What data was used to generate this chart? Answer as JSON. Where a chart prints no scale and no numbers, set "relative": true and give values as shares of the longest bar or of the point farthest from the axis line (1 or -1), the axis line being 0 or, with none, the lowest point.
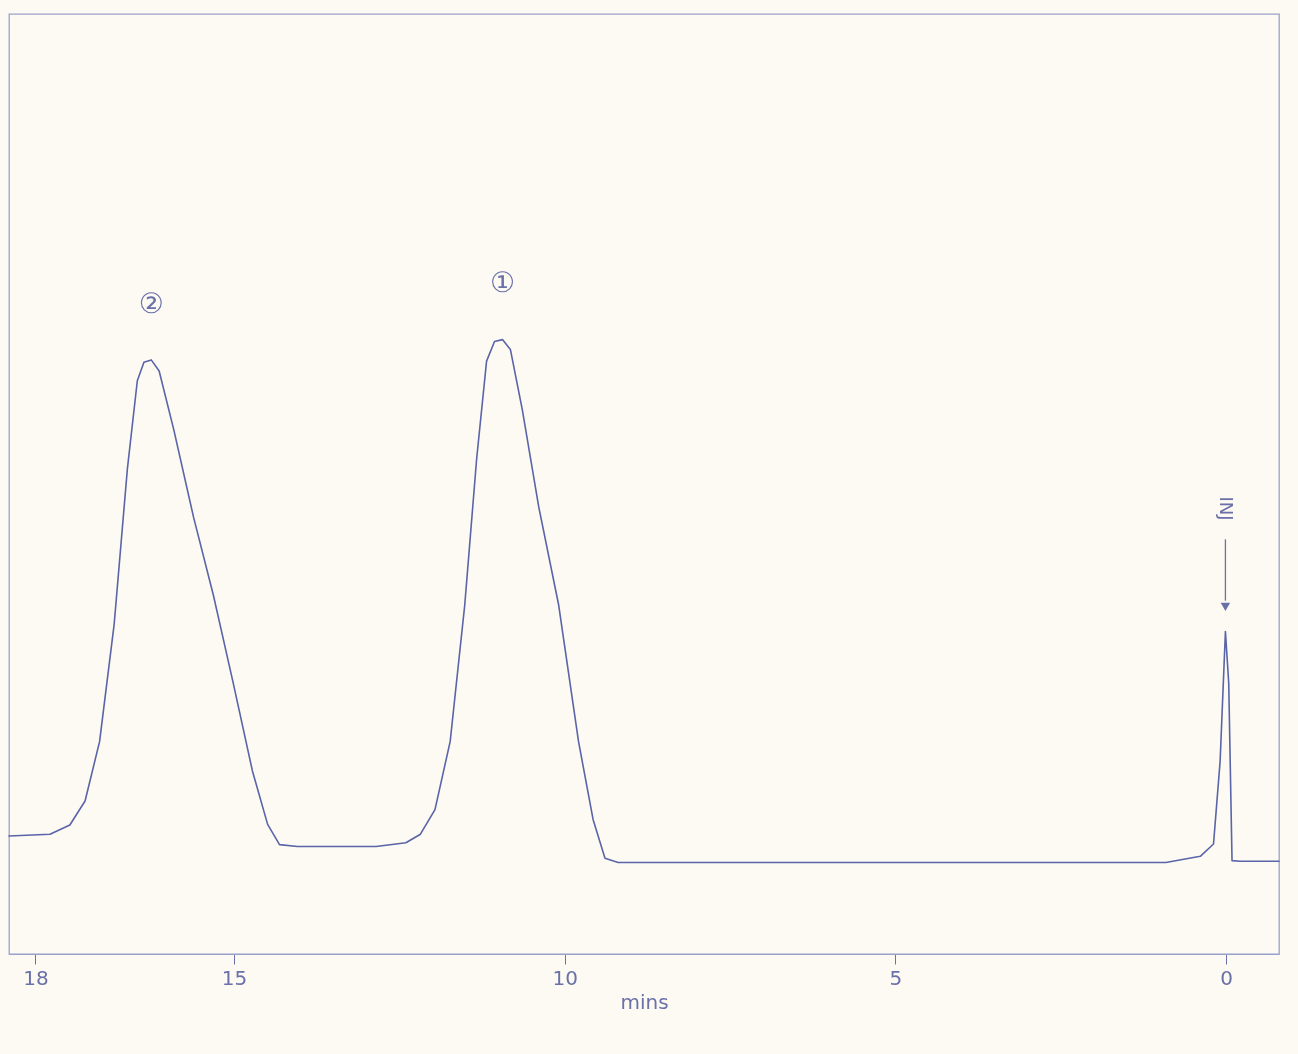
{
  "chart_data": {
    "type": "line",
    "relative": true,
    "xlabel": "mins",
    "xlim": [
      18.4,
      -0.8
    ],
    "xticks": [
      18,
      15,
      10,
      5,
      0
    ],
    "grid": false,
    "marker": "none",
    "line_style": "solid",
    "x": [
      18.4,
      17.78,
      17.48,
      17.25,
      17.03,
      16.81,
      16.61,
      16.46,
      16.36,
      16.25,
      16.13,
      15.91,
      15.61,
      15.31,
      15.01,
      14.72,
      14.49,
      14.31,
      14.04,
      12.85,
      12.4,
      12.18,
      11.96,
      11.73,
      11.51,
      11.33,
      11.18,
      11.06,
      10.94,
      10.82,
      10.64,
      10.39,
      10.09,
      9.79,
      9.57,
      9.39,
      9.19,
      0.91,
      0.39,
      0.19,
      0.09,
      0.01,
      -0.04,
      -0.09,
      -0.21,
      -0.8
    ],
    "series": [
      {
        "color": "#5a64a8",
        "values": [
          0.192,
          0.195,
          0.21,
          0.249,
          0.346,
          0.537,
          0.79,
          0.933,
          0.963,
          0.967,
          0.949,
          0.854,
          0.711,
          0.584,
          0.441,
          0.298,
          0.211,
          0.178,
          0.175,
          0.175,
          0.181,
          0.195,
          0.235,
          0.346,
          0.568,
          0.806,
          0.965,
          0.997,
          1.0,
          0.984,
          0.886,
          0.727,
          0.568,
          0.346,
          0.219,
          0.156,
          0.149,
          0.149,
          0.159,
          0.179,
          0.314,
          0.525,
          0.441,
          0.152,
          0.151,
          0.151
        ]
      }
    ],
    "annotations": [
      "②",
      "①",
      "INJ"
    ]
  }
}
